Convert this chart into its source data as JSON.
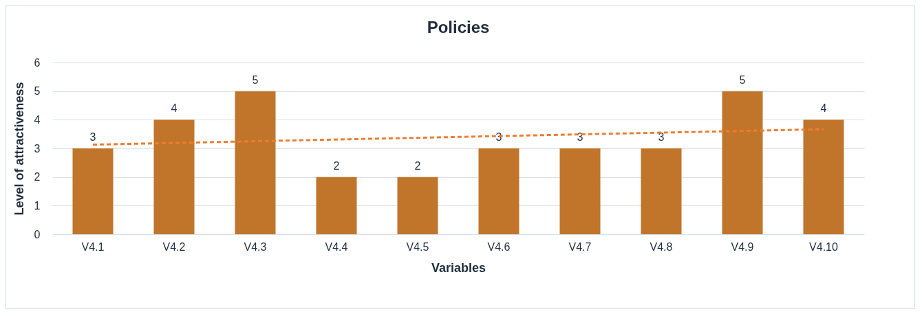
{
  "chart_data": {
    "type": "bar",
    "title": "Policies",
    "xlabel": "Variables",
    "ylabel": "Level of attractiveness",
    "categories": [
      "V4.1",
      "V4.2",
      "V4.3",
      "V4.4",
      "V4.5",
      "V4.6",
      "V4.7",
      "V4.8",
      "V4.9",
      "V4.10"
    ],
    "series": [
      {
        "color": "#c0752b",
        "values": [
          3,
          4,
          5,
          2,
          2,
          3,
          3,
          3,
          5,
          4
        ],
        "value_labels": [
          "3",
          "4",
          "5",
          "2",
          "2",
          "3",
          "3",
          "3",
          "5",
          "4"
        ]
      },
      {
        "type": "line",
        "color": "#ed7d31",
        "line_style": "dashed",
        "marker": "none",
        "x": [
          "V4.1",
          "V4.10"
        ],
        "values": [
          3.13,
          3.67
        ]
      }
    ],
    "ylim": [
      0,
      6
    ],
    "yticks": [
      0,
      1,
      2,
      3,
      4,
      5,
      6
    ],
    "grid": "y"
  }
}
